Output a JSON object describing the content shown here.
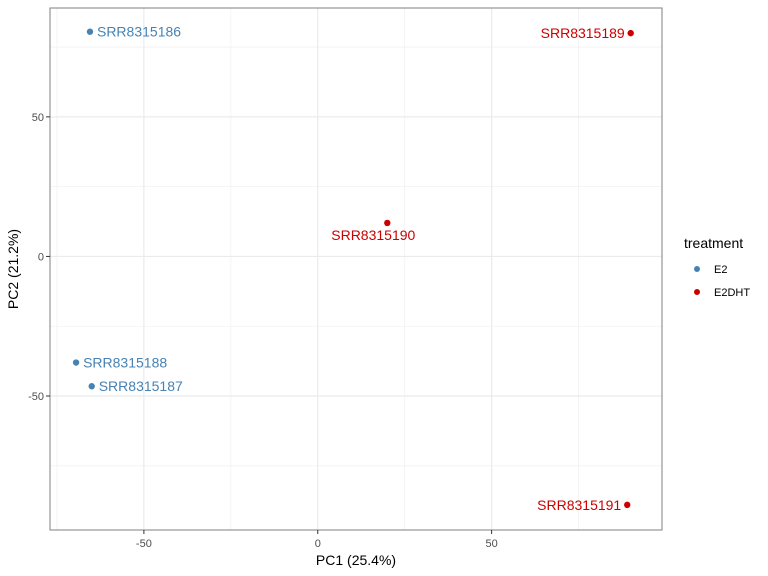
{
  "chart_data": {
    "type": "scatter",
    "title": "",
    "xlabel": "PC1 (25.4%)",
    "ylabel": "PC2 (21.2%)",
    "xlim": [
      -77,
      99
    ],
    "ylim": [
      -98,
      89
    ],
    "xticks": [
      -50,
      0,
      50
    ],
    "yticks": [
      -50,
      0,
      50
    ],
    "xtick_labels": [
      "-50",
      "0",
      "50"
    ],
    "ytick_labels": [
      "-50",
      "0",
      "50"
    ],
    "grid": true,
    "legend": {
      "title": "treatment",
      "position": "right"
    },
    "series": [
      {
        "name": "E2",
        "color": "#4682b4",
        "points": [
          {
            "x": -65.5,
            "y": 80.5,
            "label": "SRR8315186"
          },
          {
            "x": -69.5,
            "y": -38.0,
            "label": "SRR8315188"
          },
          {
            "x": -65.0,
            "y": -46.5,
            "label": "SRR8315187"
          }
        ]
      },
      {
        "name": "E2DHT",
        "color": "#cc0000",
        "points": [
          {
            "x": 90.0,
            "y": 80.0,
            "label": "SRR8315189"
          },
          {
            "x": 20.0,
            "y": 12.0,
            "label": "SRR8315190"
          },
          {
            "x": 89.0,
            "y": -89.0,
            "label": "SRR8315191"
          }
        ]
      }
    ]
  }
}
